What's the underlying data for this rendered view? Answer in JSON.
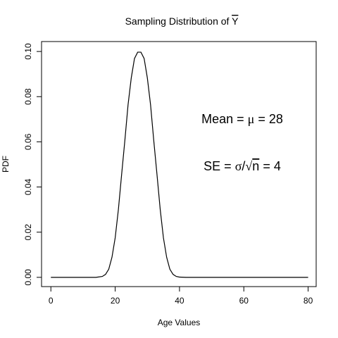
{
  "chart_data": {
    "type": "line",
    "title": "Sampling Distribution of",
    "title_symbol": "Y",
    "xlabel": "Age Values",
    "ylabel": "PDF",
    "xlim": [
      -2.9,
      82.5
    ],
    "ylim": [
      -0.0041,
      0.1044
    ],
    "x_ticks": [
      0,
      20,
      40,
      60,
      80
    ],
    "x_tick_labels": [
      "0",
      "20",
      "40",
      "60",
      "80"
    ],
    "y_ticks": [
      0.0,
      0.02,
      0.04,
      0.06,
      0.08,
      0.1
    ],
    "y_tick_labels": [
      "0.00",
      "0.02",
      "0.04",
      "0.06",
      "0.08",
      "0.10"
    ],
    "grid": false,
    "series": [
      {
        "x": [
          0,
          2,
          4,
          6,
          8,
          10,
          12,
          14,
          16,
          17,
          18,
          19,
          20,
          21,
          22,
          23,
          24,
          25,
          26,
          27,
          28,
          29,
          30,
          31,
          32,
          33,
          34,
          35,
          36,
          37,
          38,
          39,
          40,
          42,
          44,
          46,
          48,
          50,
          55,
          60,
          65,
          70,
          75,
          80
        ],
        "y": [
          0.0,
          0.0,
          0.0,
          0.0,
          0.0,
          0.0,
          0.0,
          0.0,
          0.0004,
          0.0013,
          0.0036,
          0.0089,
          0.0175,
          0.0301,
          0.0455,
          0.0605,
          0.0764,
          0.0883,
          0.0969,
          0.0997,
          0.0997,
          0.0969,
          0.0883,
          0.0764,
          0.0605,
          0.0455,
          0.0301,
          0.0175,
          0.0089,
          0.0036,
          0.0013,
          0.0004,
          0.0001,
          0.0,
          0.0,
          0.0,
          0.0,
          0.0,
          0.0,
          0.0,
          0.0,
          0.0,
          0.0,
          0.0
        ]
      }
    ],
    "annotations": {
      "mean_prefix": "Mean = ",
      "mean_symbol": "μ",
      "mean_suffix": " = 28",
      "se_prefix": "SE = ",
      "se_sigma": "σ",
      "se_slash": "/",
      "se_root": "√",
      "se_n": "n",
      "se_suffix": " = 4"
    }
  }
}
